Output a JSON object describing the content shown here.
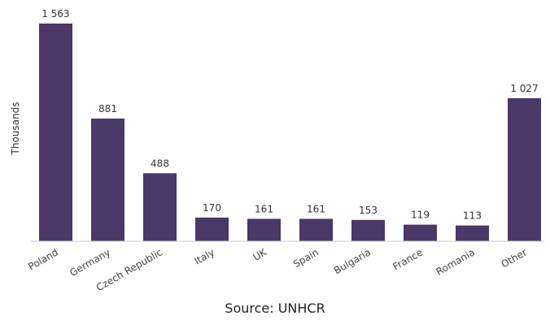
{
  "chart_data": {
    "type": "bar",
    "categories": [
      "Poland",
      "Germany",
      "Czech Republic",
      "Italy",
      "UK",
      "Spain",
      "Bulgaria",
      "France",
      "Romania",
      "Other"
    ],
    "values": [
      1563,
      881,
      488,
      170,
      161,
      161,
      153,
      119,
      113,
      1027
    ],
    "value_labels": [
      "1 563",
      "881",
      "488",
      "170",
      "161",
      "161",
      "153",
      "119",
      "113",
      "1 027"
    ],
    "ylabel": "Thousands",
    "ylim": [
      0,
      1563
    ],
    "grid": false,
    "bar_color": "#4a3868"
  },
  "source": "Source: UNHCR"
}
